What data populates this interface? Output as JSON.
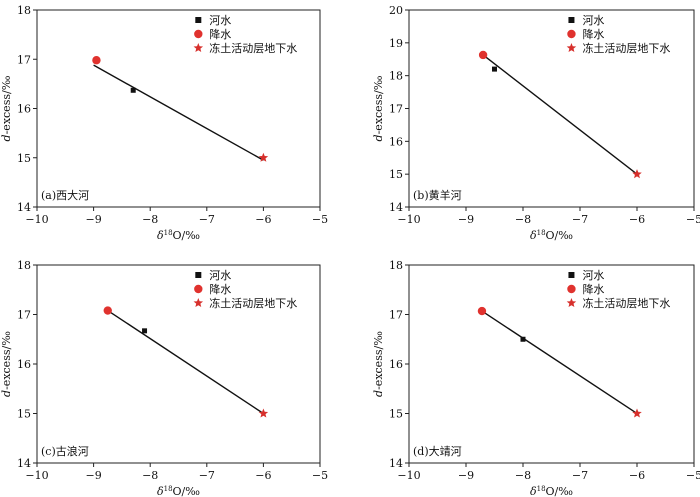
{
  "colors": {
    "river": "#111111",
    "precip": "#e0322e",
    "ground": "#d7302c",
    "line": "#111111",
    "axis": "#222222"
  },
  "legend": {
    "river": "河水",
    "precip": "降水",
    "ground": "冻土活动层地下水"
  },
  "chart_data": [
    {
      "type": "scatter",
      "panel_label": "(a)西大河",
      "xlabel_main": "δ",
      "xlabel_sup": "18",
      "xlabel_rest": "O/‰",
      "ylabel": "d-excess/‰",
      "xlim": [
        -10,
        -5
      ],
      "ylim": [
        14,
        18
      ],
      "xticks": [
        -10,
        -9,
        -8,
        -7,
        -6,
        -5
      ],
      "yticks": [
        14,
        15,
        16,
        17,
        18
      ],
      "xtick_labels": [
        "−10",
        "−9",
        "−8",
        "−7",
        "−6",
        "−5"
      ],
      "ytick_labels": [
        "14",
        "15",
        "16",
        "17",
        "18"
      ],
      "legend_position": "top-center",
      "series": [
        {
          "name": "河水",
          "marker": "square",
          "x": [
            -8.3
          ],
          "y": [
            16.37
          ]
        },
        {
          "name": "降水",
          "marker": "circle",
          "x": [
            -8.95
          ],
          "y": [
            16.98
          ]
        },
        {
          "name": "冻土活动层地下水",
          "marker": "star",
          "x": [
            -6.0
          ],
          "y": [
            15.0
          ]
        }
      ],
      "fit_line": {
        "x": [
          -9.0,
          -6.0
        ],
        "y": [
          16.88,
          14.95
        ]
      }
    },
    {
      "type": "scatter",
      "panel_label": "(b)黄羊河",
      "xlabel_main": "δ",
      "xlabel_sup": "18",
      "xlabel_rest": "O/‰",
      "ylabel": "d-excess/‰",
      "xlim": [
        -10,
        -5
      ],
      "ylim": [
        14,
        20
      ],
      "xticks": [
        -10,
        -9,
        -8,
        -7,
        -6,
        -5
      ],
      "yticks": [
        14,
        15,
        16,
        17,
        18,
        19,
        20
      ],
      "xtick_labels": [
        "−10",
        "−9",
        "−8",
        "−7",
        "−6",
        "−5"
      ],
      "ytick_labels": [
        "14",
        "15",
        "16",
        "17",
        "18",
        "19",
        "20"
      ],
      "legend_position": "top-center",
      "series": [
        {
          "name": "河水",
          "marker": "square",
          "x": [
            -8.5
          ],
          "y": [
            18.2
          ]
        },
        {
          "name": "降水",
          "marker": "circle",
          "x": [
            -8.7
          ],
          "y": [
            18.63
          ]
        },
        {
          "name": "冻土活动层地下水",
          "marker": "star",
          "x": [
            -6.0
          ],
          "y": [
            15.0
          ]
        }
      ],
      "fit_line": {
        "x": [
          -8.7
        ],
        "y": [
          18.63
        ]
      },
      "fit_line_end": {
        "x": -6.0,
        "y": 15.0
      }
    },
    {
      "type": "scatter",
      "panel_label": "(c)古浪河",
      "xlabel_main": "δ",
      "xlabel_sup": "18",
      "xlabel_rest": "O/‰",
      "ylabel": "d-excess/‰",
      "xlim": [
        -10,
        -5
      ],
      "ylim": [
        14,
        18
      ],
      "xticks": [
        -10,
        -9,
        -8,
        -7,
        -6,
        -5
      ],
      "yticks": [
        14,
        15,
        16,
        17,
        18
      ],
      "xtick_labels": [
        "−10",
        "−9",
        "−8",
        "−7",
        "−6",
        "−5"
      ],
      "ytick_labels": [
        "14",
        "15",
        "16",
        "17",
        "18"
      ],
      "legend_position": "top-center",
      "series": [
        {
          "name": "河水",
          "marker": "square",
          "x": [
            -8.1
          ],
          "y": [
            16.67
          ]
        },
        {
          "name": "降水",
          "marker": "circle",
          "x": [
            -8.75
          ],
          "y": [
            17.08
          ]
        },
        {
          "name": "冻土活动层地下水",
          "marker": "star",
          "x": [
            -6.0
          ],
          "y": [
            15.0
          ]
        }
      ],
      "fit_line": {
        "x": [
          -8.75
        ],
        "y": [
          17.08
        ]
      },
      "fit_line_end": {
        "x": -6.0,
        "y": 15.0
      }
    },
    {
      "type": "scatter",
      "panel_label": "(d)大靖河",
      "xlabel_main": "δ",
      "xlabel_sup": "18",
      "xlabel_rest": "O/‰",
      "ylabel": "d-excess/‰",
      "xlim": [
        -10,
        -5
      ],
      "ylim": [
        14,
        18
      ],
      "xticks": [
        -10,
        -9,
        -8,
        -7,
        -6,
        -5
      ],
      "yticks": [
        14,
        15,
        16,
        17,
        18
      ],
      "xtick_labels": [
        "−10",
        "−9",
        "−8",
        "−7",
        "−6",
        "−5"
      ],
      "ytick_labels": [
        "14",
        "15",
        "16",
        "17",
        "18"
      ],
      "legend_position": "top-center",
      "series": [
        {
          "name": "河水",
          "marker": "square",
          "x": [
            -8.0
          ],
          "y": [
            16.5
          ]
        },
        {
          "name": "降水",
          "marker": "circle",
          "x": [
            -8.72
          ],
          "y": [
            17.07
          ]
        },
        {
          "name": "冻土活动层地下水",
          "marker": "star",
          "x": [
            -6.0
          ],
          "y": [
            15.0
          ]
        }
      ],
      "fit_line": {
        "x": [
          -8.72
        ],
        "y": [
          17.07
        ]
      },
      "fit_line_end": {
        "x": -6.0,
        "y": 15.0
      }
    }
  ]
}
